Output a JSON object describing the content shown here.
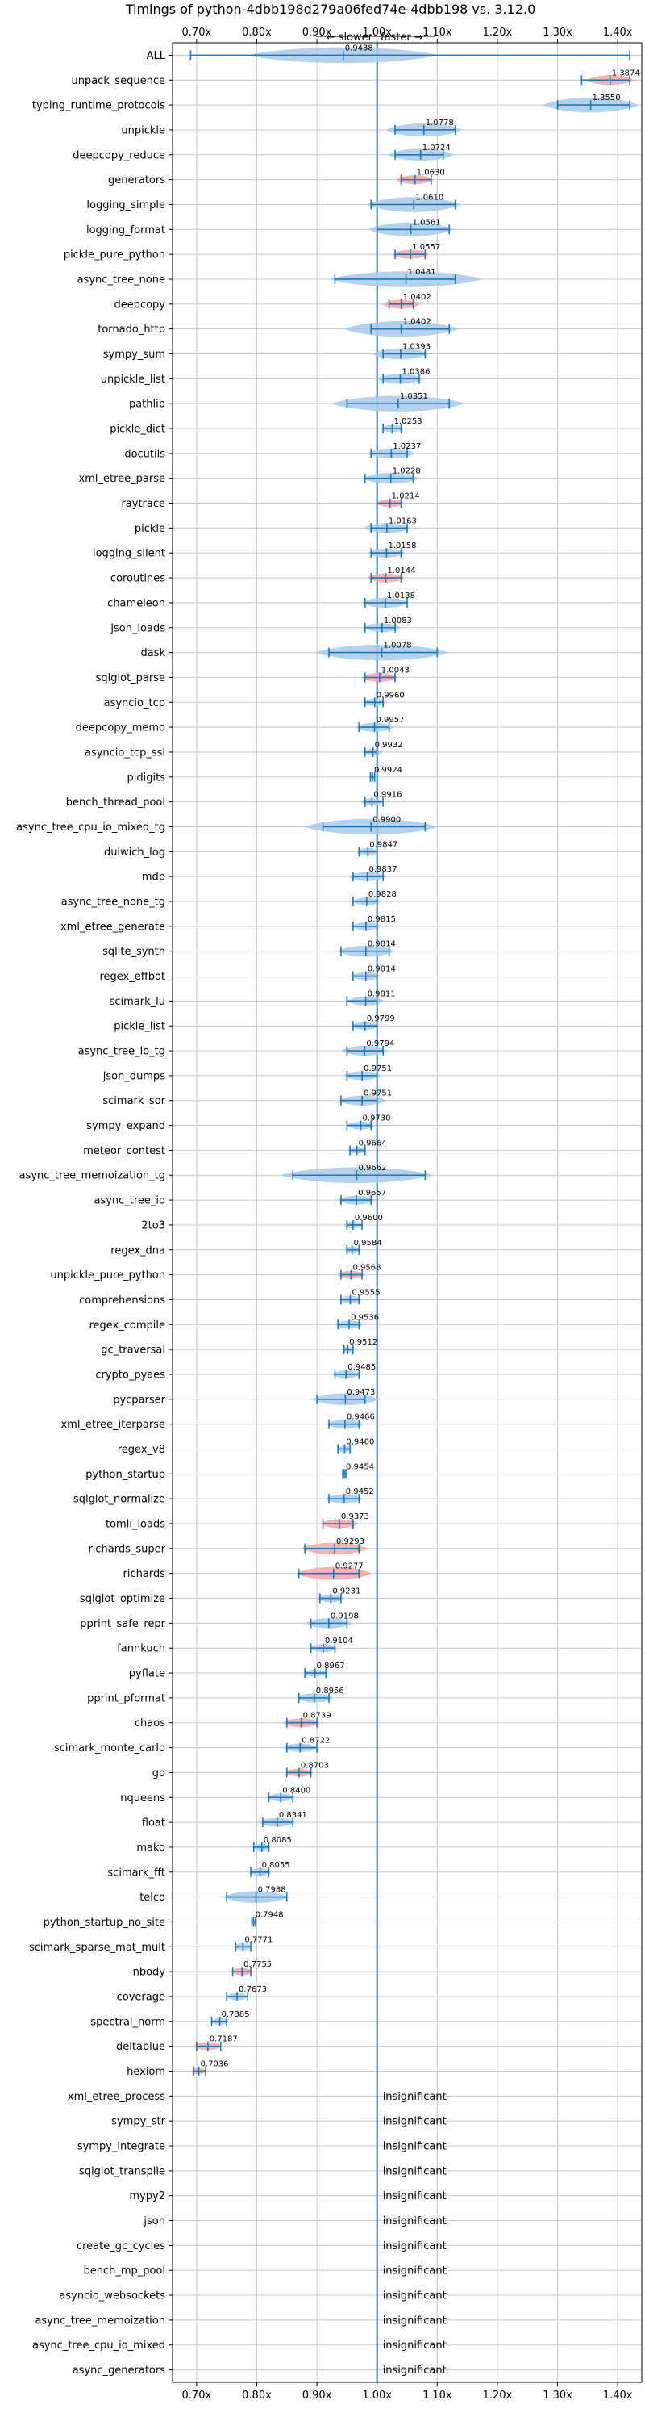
{
  "chart_data": {
    "type": "violin",
    "title": "Timings of python-4dbb198d279a06fed74e-4dbb198 vs. 3.12.0",
    "direction": {
      "slower": "← slower",
      "faster": "faster →"
    },
    "xlim": [
      0.66,
      1.44
    ],
    "reference_x": 1.0,
    "xticks": [
      0.7,
      0.8,
      0.9,
      1.0,
      1.1,
      1.2,
      1.3,
      1.4
    ],
    "xtick_labels": [
      "0.70x",
      "0.80x",
      "0.90x",
      "1.00x",
      "1.10x",
      "1.20x",
      "1.30x",
      "1.40x"
    ],
    "insignificant_label": "insignificant",
    "colors": {
      "violin_blue": "#a9c9e8",
      "violin_red": "#f4a6a8",
      "line": "#1f77b4",
      "grid": "#c8c8c8"
    },
    "benchmarks": [
      {
        "name": "ALL",
        "value": 0.9438,
        "label": "0.9438",
        "lo": 0.69,
        "hi": 1.42,
        "spread": 0.1,
        "color": "blue",
        "all": true
      },
      {
        "name": "unpack_sequence",
        "value": 1.3874,
        "label": "1.3874",
        "lo": 1.34,
        "hi": 1.42,
        "spread": 0.025,
        "color": "red"
      },
      {
        "name": "typing_runtime_protocols",
        "value": 1.355,
        "label": "1.3550",
        "lo": 1.3,
        "hi": 1.42,
        "spread": 0.05,
        "color": "blue"
      },
      {
        "name": "unpickle",
        "value": 1.0778,
        "label": "1.0778",
        "lo": 1.03,
        "hi": 1.13,
        "spread": 0.04,
        "color": "blue"
      },
      {
        "name": "deepcopy_reduce",
        "value": 1.0724,
        "label": "1.0724",
        "lo": 1.03,
        "hi": 1.11,
        "spread": 0.035,
        "color": "blue"
      },
      {
        "name": "generators",
        "value": 1.063,
        "label": "1.0630",
        "lo": 1.04,
        "hi": 1.09,
        "spread": 0.02,
        "color": "red"
      },
      {
        "name": "logging_simple",
        "value": 1.061,
        "label": "1.0610",
        "lo": 0.99,
        "hi": 1.13,
        "spread": 0.05,
        "color": "blue"
      },
      {
        "name": "logging_format",
        "value": 1.0561,
        "label": "1.0561",
        "lo": 1.0,
        "hi": 1.12,
        "spread": 0.045,
        "color": "blue"
      },
      {
        "name": "pickle_pure_python",
        "value": 1.0557,
        "label": "1.0557",
        "lo": 1.03,
        "hi": 1.08,
        "spread": 0.02,
        "color": "red"
      },
      {
        "name": "async_tree_none",
        "value": 1.0481,
        "label": "1.0481",
        "lo": 0.93,
        "hi": 1.13,
        "spread": 0.08,
        "color": "blue"
      },
      {
        "name": "deepcopy",
        "value": 1.0402,
        "label": "1.0402",
        "lo": 1.02,
        "hi": 1.06,
        "spread": 0.02,
        "color": "red"
      },
      {
        "name": "tornado_http",
        "value": 1.0402,
        "label": "1.0402",
        "lo": 0.99,
        "hi": 1.12,
        "spread": 0.06,
        "color": "blue"
      },
      {
        "name": "sympy_sum",
        "value": 1.0393,
        "label": "1.0393",
        "lo": 1.01,
        "hi": 1.08,
        "spread": 0.03,
        "color": "blue"
      },
      {
        "name": "unpickle_list",
        "value": 1.0386,
        "label": "1.0386",
        "lo": 1.01,
        "hi": 1.07,
        "spread": 0.025,
        "color": "blue"
      },
      {
        "name": "pathlib",
        "value": 1.0351,
        "label": "1.0351",
        "lo": 0.95,
        "hi": 1.12,
        "spread": 0.07,
        "color": "blue"
      },
      {
        "name": "pickle_dict",
        "value": 1.0253,
        "label": "1.0253",
        "lo": 1.01,
        "hi": 1.04,
        "spread": 0.012,
        "color": "blue"
      },
      {
        "name": "docutils",
        "value": 1.0237,
        "label": "1.0237",
        "lo": 0.99,
        "hi": 1.05,
        "spread": 0.025,
        "color": "blue"
      },
      {
        "name": "xml_etree_parse",
        "value": 1.0228,
        "label": "1.0228",
        "lo": 0.98,
        "hi": 1.06,
        "spread": 0.03,
        "color": "blue"
      },
      {
        "name": "raytrace",
        "value": 1.0214,
        "label": "1.0214",
        "lo": 1.0,
        "hi": 1.04,
        "spread": 0.015,
        "color": "red"
      },
      {
        "name": "pickle",
        "value": 1.0163,
        "label": "1.0163",
        "lo": 0.99,
        "hi": 1.05,
        "spread": 0.025,
        "color": "blue"
      },
      {
        "name": "logging_silent",
        "value": 1.0158,
        "label": "1.0158",
        "lo": 0.99,
        "hi": 1.04,
        "spread": 0.02,
        "color": "blue"
      },
      {
        "name": "coroutines",
        "value": 1.0144,
        "label": "1.0144",
        "lo": 0.99,
        "hi": 1.04,
        "spread": 0.02,
        "color": "red"
      },
      {
        "name": "chameleon",
        "value": 1.0138,
        "label": "1.0138",
        "lo": 0.98,
        "hi": 1.05,
        "spread": 0.025,
        "color": "blue"
      },
      {
        "name": "json_loads",
        "value": 1.0083,
        "label": "1.0083",
        "lo": 0.98,
        "hi": 1.03,
        "spread": 0.02,
        "color": "blue"
      },
      {
        "name": "dask",
        "value": 1.0078,
        "label": "1.0078",
        "lo": 0.92,
        "hi": 1.1,
        "spread": 0.07,
        "color": "blue"
      },
      {
        "name": "sqlglot_parse",
        "value": 1.0043,
        "label": "1.0043",
        "lo": 0.98,
        "hi": 1.03,
        "spread": 0.02,
        "color": "red"
      },
      {
        "name": "asyncio_tcp",
        "value": 0.996,
        "label": "0.9960",
        "lo": 0.98,
        "hi": 1.01,
        "spread": 0.012,
        "color": "blue"
      },
      {
        "name": "deepcopy_memo",
        "value": 0.9957,
        "label": "0.9957",
        "lo": 0.97,
        "hi": 1.02,
        "spread": 0.02,
        "color": "blue"
      },
      {
        "name": "asyncio_tcp_ssl",
        "value": 0.9932,
        "label": "0.9932",
        "lo": 0.98,
        "hi": 1.0,
        "spread": 0.01,
        "color": "blue"
      },
      {
        "name": "pidigits",
        "value": 0.9924,
        "label": "0.9924",
        "lo": 0.989,
        "hi": 0.996,
        "spread": 0.004,
        "color": "blue"
      },
      {
        "name": "bench_thread_pool",
        "value": 0.9916,
        "label": "0.9916",
        "lo": 0.98,
        "hi": 1.01,
        "spread": 0.012,
        "color": "blue"
      },
      {
        "name": "async_tree_cpu_io_mixed_tg",
        "value": 0.99,
        "label": "0.9900",
        "lo": 0.91,
        "hi": 1.08,
        "spread": 0.07,
        "color": "blue"
      },
      {
        "name": "dulwich_log",
        "value": 0.9847,
        "label": "0.9847",
        "lo": 0.97,
        "hi": 1.0,
        "spread": 0.012,
        "color": "blue"
      },
      {
        "name": "mdp",
        "value": 0.9837,
        "label": "0.9837",
        "lo": 0.96,
        "hi": 1.01,
        "spread": 0.02,
        "color": "blue"
      },
      {
        "name": "async_tree_none_tg",
        "value": 0.9828,
        "label": "0.9828",
        "lo": 0.96,
        "hi": 1.0,
        "spread": 0.015,
        "color": "blue"
      },
      {
        "name": "xml_etree_generate",
        "value": 0.9815,
        "label": "0.9815",
        "lo": 0.96,
        "hi": 1.0,
        "spread": 0.015,
        "color": "blue"
      },
      {
        "name": "sqlite_synth",
        "value": 0.9814,
        "label": "0.9814",
        "lo": 0.94,
        "hi": 1.02,
        "spread": 0.03,
        "color": "blue"
      },
      {
        "name": "regex_effbot",
        "value": 0.9814,
        "label": "0.9814",
        "lo": 0.96,
        "hi": 1.0,
        "spread": 0.015,
        "color": "blue"
      },
      {
        "name": "scimark_lu",
        "value": 0.9811,
        "label": "0.9811",
        "lo": 0.95,
        "hi": 1.0,
        "spread": 0.02,
        "color": "blue"
      },
      {
        "name": "pickle_list",
        "value": 0.9799,
        "label": "0.9799",
        "lo": 0.96,
        "hi": 1.0,
        "spread": 0.015,
        "color": "blue"
      },
      {
        "name": "async_tree_io_tg",
        "value": 0.9794,
        "label": "0.9794",
        "lo": 0.95,
        "hi": 1.01,
        "spread": 0.025,
        "color": "blue"
      },
      {
        "name": "json_dumps",
        "value": 0.9751,
        "label": "0.9751",
        "lo": 0.95,
        "hi": 1.0,
        "spread": 0.02,
        "color": "blue"
      },
      {
        "name": "scimark_sor",
        "value": 0.9751,
        "label": "0.9751",
        "lo": 0.94,
        "hi": 1.0,
        "spread": 0.025,
        "color": "blue"
      },
      {
        "name": "sympy_expand",
        "value": 0.973,
        "label": "0.9730",
        "lo": 0.95,
        "hi": 0.99,
        "spread": 0.015,
        "color": "blue"
      },
      {
        "name": "meteor_contest",
        "value": 0.9664,
        "label": "0.9664",
        "lo": 0.955,
        "hi": 0.98,
        "spread": 0.01,
        "color": "blue"
      },
      {
        "name": "async_tree_memoization_tg",
        "value": 0.9662,
        "label": "0.9662",
        "lo": 0.86,
        "hi": 1.08,
        "spread": 0.08,
        "color": "blue"
      },
      {
        "name": "async_tree_io",
        "value": 0.9657,
        "label": "0.9657",
        "lo": 0.94,
        "hi": 0.99,
        "spread": 0.02,
        "color": "blue"
      },
      {
        "name": "2to3",
        "value": 0.96,
        "label": "0.9600",
        "lo": 0.95,
        "hi": 0.975,
        "spread": 0.01,
        "color": "blue"
      },
      {
        "name": "regex_dna",
        "value": 0.9584,
        "label": "0.9584",
        "lo": 0.95,
        "hi": 0.97,
        "spread": 0.008,
        "color": "blue"
      },
      {
        "name": "unpickle_pure_python",
        "value": 0.9568,
        "label": "0.9568",
        "lo": 0.94,
        "hi": 0.975,
        "spread": 0.015,
        "color": "red"
      },
      {
        "name": "comprehensions",
        "value": 0.9555,
        "label": "0.9555",
        "lo": 0.94,
        "hi": 0.97,
        "spread": 0.012,
        "color": "blue"
      },
      {
        "name": "regex_compile",
        "value": 0.9536,
        "label": "0.9536",
        "lo": 0.935,
        "hi": 0.97,
        "spread": 0.015,
        "color": "blue"
      },
      {
        "name": "gc_traversal",
        "value": 0.9512,
        "label": "0.9512",
        "lo": 0.945,
        "hi": 0.96,
        "spread": 0.006,
        "color": "blue"
      },
      {
        "name": "crypto_pyaes",
        "value": 0.9485,
        "label": "0.9485",
        "lo": 0.93,
        "hi": 0.97,
        "spread": 0.015,
        "color": "blue"
      },
      {
        "name": "pycparser",
        "value": 0.9473,
        "label": "0.9473",
        "lo": 0.9,
        "hi": 0.98,
        "spread": 0.035,
        "color": "blue"
      },
      {
        "name": "xml_etree_iterparse",
        "value": 0.9466,
        "label": "0.9466",
        "lo": 0.92,
        "hi": 0.97,
        "spread": 0.02,
        "color": "blue"
      },
      {
        "name": "regex_v8",
        "value": 0.946,
        "label": "0.9460",
        "lo": 0.935,
        "hi": 0.955,
        "spread": 0.008,
        "color": "blue"
      },
      {
        "name": "python_startup",
        "value": 0.9454,
        "label": "0.9454",
        "lo": 0.943,
        "hi": 0.948,
        "spread": 0.003,
        "color": "blue"
      },
      {
        "name": "sqlglot_normalize",
        "value": 0.9452,
        "label": "0.9452",
        "lo": 0.92,
        "hi": 0.97,
        "spread": 0.02,
        "color": "blue"
      },
      {
        "name": "tomli_loads",
        "value": 0.9373,
        "label": "0.9373",
        "lo": 0.91,
        "hi": 0.96,
        "spread": 0.02,
        "color": "red"
      },
      {
        "name": "richards_super",
        "value": 0.9293,
        "label": "0.9293",
        "lo": 0.88,
        "hi": 0.97,
        "spread": 0.035,
        "color": "red"
      },
      {
        "name": "richards",
        "value": 0.9277,
        "label": "0.9277",
        "lo": 0.87,
        "hi": 0.97,
        "spread": 0.04,
        "color": "red"
      },
      {
        "name": "sqlglot_optimize",
        "value": 0.9231,
        "label": "0.9231",
        "lo": 0.905,
        "hi": 0.94,
        "spread": 0.015,
        "color": "blue"
      },
      {
        "name": "pprint_safe_repr",
        "value": 0.9198,
        "label": "0.9198",
        "lo": 0.89,
        "hi": 0.95,
        "spread": 0.025,
        "color": "blue"
      },
      {
        "name": "fannkuch",
        "value": 0.9104,
        "label": "0.9104",
        "lo": 0.89,
        "hi": 0.93,
        "spread": 0.015,
        "color": "blue"
      },
      {
        "name": "pyflate",
        "value": 0.8967,
        "label": "0.8967",
        "lo": 0.88,
        "hi": 0.915,
        "spread": 0.012,
        "color": "blue"
      },
      {
        "name": "pprint_pformat",
        "value": 0.8956,
        "label": "0.8956",
        "lo": 0.87,
        "hi": 0.92,
        "spread": 0.02,
        "color": "blue"
      },
      {
        "name": "chaos",
        "value": 0.8739,
        "label": "0.8739",
        "lo": 0.85,
        "hi": 0.9,
        "spread": 0.02,
        "color": "red"
      },
      {
        "name": "scimark_monte_carlo",
        "value": 0.8722,
        "label": "0.8722",
        "lo": 0.85,
        "hi": 0.9,
        "spread": 0.018,
        "color": "blue"
      },
      {
        "name": "go",
        "value": 0.8703,
        "label": "0.8703",
        "lo": 0.85,
        "hi": 0.89,
        "spread": 0.015,
        "color": "red"
      },
      {
        "name": "nqueens",
        "value": 0.84,
        "label": "0.8400",
        "lo": 0.82,
        "hi": 0.86,
        "spread": 0.015,
        "color": "blue"
      },
      {
        "name": "float",
        "value": 0.8341,
        "label": "0.8341",
        "lo": 0.81,
        "hi": 0.86,
        "spread": 0.02,
        "color": "blue"
      },
      {
        "name": "mako",
        "value": 0.8085,
        "label": "0.8085",
        "lo": 0.795,
        "hi": 0.82,
        "spread": 0.01,
        "color": "blue"
      },
      {
        "name": "scimark_fft",
        "value": 0.8055,
        "label": "0.8055",
        "lo": 0.79,
        "hi": 0.82,
        "spread": 0.012,
        "color": "blue"
      },
      {
        "name": "telco",
        "value": 0.7988,
        "label": "0.7988",
        "lo": 0.75,
        "hi": 0.85,
        "spread": 0.035,
        "color": "blue"
      },
      {
        "name": "python_startup_no_site",
        "value": 0.7948,
        "label": "0.7948",
        "lo": 0.792,
        "hi": 0.798,
        "spread": 0.003,
        "color": "blue"
      },
      {
        "name": "scimark_sparse_mat_mult",
        "value": 0.7771,
        "label": "0.7771",
        "lo": 0.765,
        "hi": 0.79,
        "spread": 0.01,
        "color": "blue"
      },
      {
        "name": "nbody",
        "value": 0.7755,
        "label": "0.7755",
        "lo": 0.76,
        "hi": 0.79,
        "spread": 0.012,
        "color": "red"
      },
      {
        "name": "coverage",
        "value": 0.7673,
        "label": "0.7673",
        "lo": 0.75,
        "hi": 0.785,
        "spread": 0.012,
        "color": "blue"
      },
      {
        "name": "spectral_norm",
        "value": 0.7385,
        "label": "0.7385",
        "lo": 0.725,
        "hi": 0.75,
        "spread": 0.01,
        "color": "blue"
      },
      {
        "name": "deltablue",
        "value": 0.7187,
        "label": "0.7187",
        "lo": 0.7,
        "hi": 0.74,
        "spread": 0.015,
        "color": "red"
      },
      {
        "name": "hexiom",
        "value": 0.7036,
        "label": "0.7036",
        "lo": 0.695,
        "hi": 0.715,
        "spread": 0.008,
        "color": "red"
      },
      {
        "name": "xml_etree_process",
        "insignificant": true
      },
      {
        "name": "sympy_str",
        "insignificant": true
      },
      {
        "name": "sympy_integrate",
        "insignificant": true
      },
      {
        "name": "sqlglot_transpile",
        "insignificant": true
      },
      {
        "name": "mypy2",
        "insignificant": true
      },
      {
        "name": "json",
        "insignificant": true
      },
      {
        "name": "create_gc_cycles",
        "insignificant": true
      },
      {
        "name": "bench_mp_pool",
        "insignificant": true
      },
      {
        "name": "asyncio_websockets",
        "insignificant": true
      },
      {
        "name": "async_tree_memoization",
        "insignificant": true
      },
      {
        "name": "async_tree_cpu_io_mixed",
        "insignificant": true
      },
      {
        "name": "async_generators",
        "insignificant": true
      }
    ]
  }
}
